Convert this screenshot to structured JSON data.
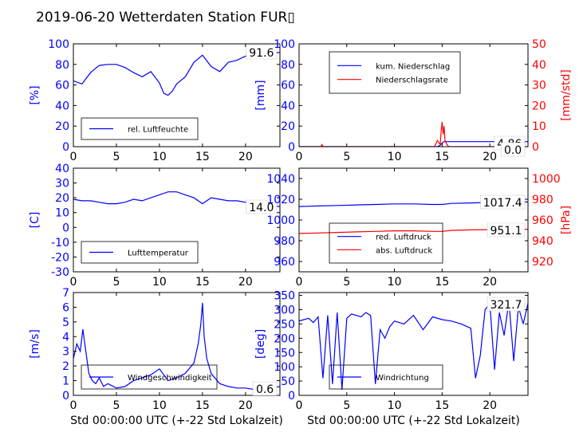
{
  "title": "2019-06-20 Wetterdaten Station FUR▯",
  "colors": {
    "blue": "#0000ff",
    "red": "#ff0000",
    "black": "#000000"
  },
  "chart_data": [
    {
      "type": "line",
      "ylabel": "[%]",
      "xlim": [
        0,
        24
      ],
      "ylim": [
        0,
        100
      ],
      "xticks": [
        0,
        5,
        10,
        15,
        20
      ],
      "yticks": [
        0,
        20,
        40,
        60,
        80,
        100
      ],
      "legend_position": "lower-left",
      "series": [
        {
          "name": "rel. Luftfeuchte",
          "color": "#0000ff",
          "x": [
            0,
            1,
            2,
            3,
            4,
            5,
            6,
            7,
            8,
            9,
            10,
            10.5,
            11,
            11.5,
            12,
            13,
            14,
            15,
            16,
            17,
            18,
            19,
            20,
            21,
            22,
            23,
            24
          ],
          "y": [
            64,
            61,
            72,
            79,
            80,
            80,
            77,
            72,
            68,
            73,
            62,
            52,
            50,
            54,
            61,
            68,
            82,
            89,
            78,
            73,
            82,
            84,
            88,
            89,
            90,
            91,
            91.6
          ]
        }
      ],
      "readout": "91.6"
    },
    {
      "type": "line",
      "ylabel": "[mm]",
      "ylabel2": "[mm/std]",
      "xlim": [
        0,
        24
      ],
      "ylim": [
        0,
        100
      ],
      "ylim2": [
        0,
        50
      ],
      "xticks": [
        0,
        5,
        10,
        15,
        20
      ],
      "yticks": [
        0,
        20,
        40,
        60,
        80,
        100
      ],
      "yticks2": [
        0,
        10,
        20,
        30,
        40,
        50
      ],
      "legend_position": "upper-left",
      "series": [
        {
          "name": "kum. Niederschlag",
          "color": "#0000ff",
          "axis": "left",
          "x": [
            0,
            14.5,
            14.8,
            15.0,
            15.2,
            24
          ],
          "y": [
            0,
            0,
            1.5,
            3.5,
            4.86,
            4.86
          ]
        },
        {
          "name": "Niederschlagsrate",
          "color": "#ff0000",
          "axis": "right",
          "x": [
            0,
            2.3,
            2.4,
            2.5,
            14.2,
            14.5,
            14.8,
            14.9,
            15.0,
            15.1,
            15.2,
            15.3,
            15.5,
            15.7,
            24
          ],
          "y": [
            0,
            0,
            1,
            0,
            0,
            3,
            1,
            8,
            12,
            6,
            10,
            3,
            1,
            0,
            0
          ]
        }
      ],
      "readouts": [
        "4.86",
        "0.0"
      ]
    },
    {
      "type": "line",
      "ylabel": "[C]",
      "xlim": [
        0,
        24
      ],
      "ylim": [
        -30,
        40
      ],
      "xticks": [
        0,
        5,
        10,
        15,
        20
      ],
      "yticks": [
        -30,
        -20,
        -10,
        0,
        10,
        20,
        30,
        40
      ],
      "legend_position": "lower-left",
      "series": [
        {
          "name": "Lufttemperatur",
          "color": "#0000ff",
          "x": [
            0,
            1,
            2,
            3,
            4,
            5,
            6,
            7,
            8,
            9,
            10,
            11,
            12,
            13,
            14,
            15,
            16,
            17,
            18,
            19,
            20,
            21,
            22,
            23,
            24
          ],
          "y": [
            19,
            18,
            18,
            17,
            16,
            16,
            17,
            19,
            18,
            20,
            22,
            24,
            24,
            22,
            20,
            16,
            20,
            19,
            18,
            18,
            17,
            16,
            15,
            15,
            14
          ]
        }
      ],
      "readout": "14.0"
    },
    {
      "type": "line",
      "ylabel2": "[hPa]",
      "xlim": [
        0,
        24
      ],
      "ylim": [
        950,
        1050
      ],
      "ylim2": [
        910,
        1010
      ],
      "xticks": [
        0,
        5,
        10,
        15,
        20
      ],
      "yticks": [
        960,
        980,
        1000,
        1020,
        1040
      ],
      "yticks2": [
        920,
        940,
        960,
        980,
        1000
      ],
      "legend_position": "lower-left",
      "series": [
        {
          "name": "red. Luftdruck",
          "color": "#0000ff",
          "axis": "left",
          "x": [
            0,
            2,
            4,
            6,
            8,
            10,
            12,
            14,
            15,
            16,
            18,
            20,
            22,
            24
          ],
          "y": [
            1013,
            1013.5,
            1014,
            1014.5,
            1015,
            1015.5,
            1015.5,
            1015,
            1015,
            1016,
            1016.5,
            1017,
            1017.2,
            1017.4
          ]
        },
        {
          "name": "abs. Luftdruck",
          "color": "#ff0000",
          "axis": "right",
          "x": [
            0,
            2,
            4,
            6,
            8,
            10,
            12,
            14,
            15,
            16,
            18,
            20,
            22,
            24
          ],
          "y": [
            947,
            947.5,
            948,
            948.5,
            949,
            949.5,
            949.5,
            949,
            949,
            950,
            950.5,
            950.8,
            951,
            951.1
          ]
        }
      ],
      "readouts": [
        "1017.4",
        "951.1"
      ]
    },
    {
      "type": "line",
      "ylabel": "[m/s]",
      "xlabel": "Std 00:00:00 UTC (+-22 Std Lokalzeit)",
      "xlim": [
        0,
        24
      ],
      "ylim": [
        0,
        7
      ],
      "xticks": [
        0,
        5,
        10,
        15,
        20
      ],
      "yticks": [
        0,
        1,
        2,
        3,
        4,
        5,
        6,
        7
      ],
      "legend_position": "lower-left",
      "series": [
        {
          "name": "Windgeschwindigkeit",
          "color": "#0000ff",
          "x": [
            0,
            0.4,
            0.8,
            1.1,
            1.4,
            1.8,
            2.2,
            2.6,
            3.0,
            3.5,
            4,
            5,
            6,
            7,
            8,
            9,
            10,
            11,
            12,
            13,
            14,
            14.5,
            14.8,
            15.0,
            15.2,
            15.5,
            16,
            17,
            18,
            19,
            20,
            21,
            22,
            23,
            24
          ],
          "y": [
            2.5,
            3.5,
            3.0,
            4.5,
            3.2,
            1.5,
            1.0,
            0.8,
            1.2,
            0.6,
            0.8,
            0.5,
            0.6,
            1.0,
            1.2,
            1.4,
            1.8,
            1.0,
            1.2,
            1.5,
            2.2,
            3.5,
            4.8,
            6.3,
            4.0,
            2.5,
            1.5,
            0.8,
            0.6,
            0.5,
            0.5,
            0.4,
            0.6,
            0.5,
            0.6
          ]
        }
      ],
      "readout": "0.6"
    },
    {
      "type": "line",
      "ylabel": "[deg]",
      "xlabel": "Std 00:00:00 UTC (+-22 Std Lokalzeit)",
      "xlim": [
        0,
        24
      ],
      "ylim": [
        0,
        360
      ],
      "xticks": [
        0,
        5,
        10,
        15,
        20
      ],
      "yticks": [
        0,
        50,
        100,
        150,
        200,
        250,
        300,
        350
      ],
      "legend_position": "lower-left",
      "series": [
        {
          "name": "Windrichtung",
          "color": "#0000ff",
          "x": [
            0,
            0.5,
            1,
            1.5,
            2,
            2.5,
            3,
            3.5,
            4,
            4.5,
            5,
            5.5,
            6,
            6.5,
            7,
            7.5,
            8,
            8.5,
            9,
            9.5,
            10,
            11,
            12,
            13,
            14,
            15,
            16,
            17,
            18,
            18.5,
            19,
            19.5,
            20,
            20.5,
            21,
            21.5,
            22,
            22.5,
            23,
            23.5,
            24
          ],
          "y": [
            260,
            265,
            270,
            255,
            275,
            60,
            280,
            40,
            290,
            20,
            270,
            285,
            280,
            275,
            290,
            280,
            40,
            230,
            200,
            240,
            260,
            250,
            280,
            230,
            275,
            265,
            260,
            250,
            235,
            60,
            140,
            300,
            320,
            90,
            290,
            210,
            330,
            120,
            310,
            250,
            321.7
          ]
        }
      ],
      "readout": "321.7"
    }
  ]
}
